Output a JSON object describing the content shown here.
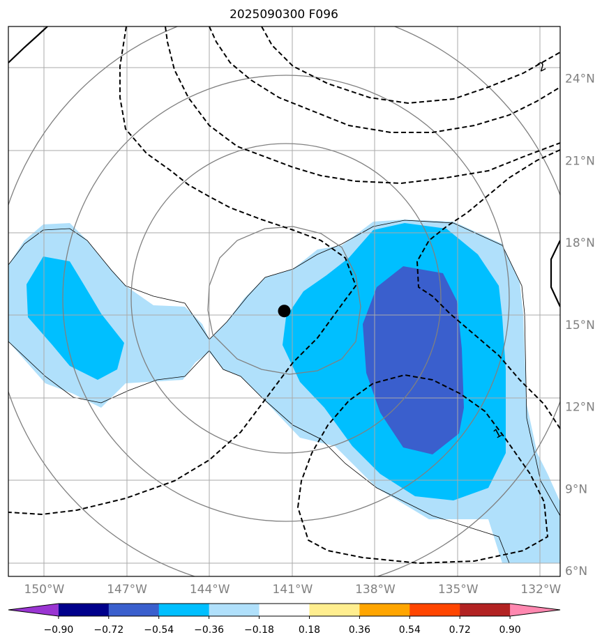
{
  "title": "2025090300 F096",
  "map": {
    "lon_range": [
      -151.3,
      -131.3
    ],
    "lat_range": [
      5.8,
      25.9
    ],
    "lon_ticks": [
      {
        "value": -150,
        "label": "150°W"
      },
      {
        "value": -147,
        "label": "147°W"
      },
      {
        "value": -144,
        "label": "144°W"
      },
      {
        "value": -141,
        "label": "141°W"
      },
      {
        "value": -138,
        "label": "138°W"
      },
      {
        "value": -135,
        "label": "135°W"
      },
      {
        "value": -132,
        "label": "132°W"
      }
    ],
    "lat_ticks": [
      {
        "value": 24,
        "label": "24°N"
      },
      {
        "value": 21,
        "label": "21°N"
      },
      {
        "value": 18,
        "label": "18°N"
      },
      {
        "value": 15,
        "label": "15°N"
      },
      {
        "value": 12,
        "label": "12°N"
      },
      {
        "value": 9,
        "label": "9°N"
      },
      {
        "value": 6,
        "label": "6°N"
      }
    ],
    "grid": true,
    "storm_center": {
      "lon": -141.3,
      "lat": 15.5
    },
    "contour_labels": [
      {
        "text": "2",
        "lon": -131.9,
        "lat": 24.3
      },
      {
        "text": "1",
        "lon": -133.5,
        "lat": 10.9
      }
    ]
  },
  "colorbar": {
    "labels": [
      "−0.90",
      "−0.72",
      "−0.54",
      "−0.36",
      "−0.18",
      "0.18",
      "0.36",
      "0.54",
      "0.72",
      "0.90"
    ],
    "colors": [
      "#9a35d2",
      "#00008b",
      "#3a5fcd",
      "#00bfff",
      "#b0e0fb",
      "#ffffff",
      "#ffee8f",
      "#ffa500",
      "#ff4500",
      "#b22222",
      "#ff88b0"
    ]
  }
}
